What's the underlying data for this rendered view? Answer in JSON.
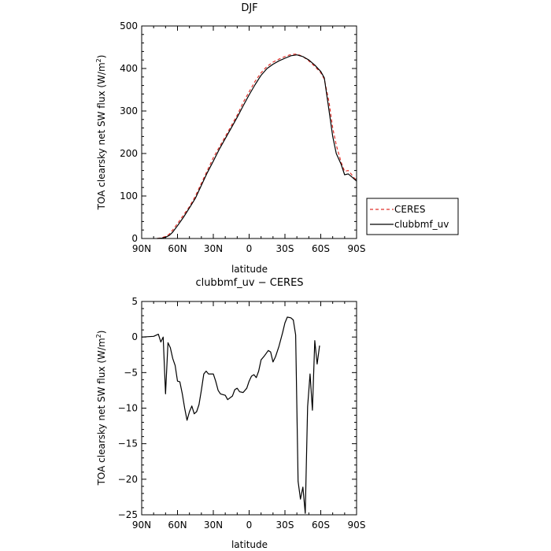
{
  "chart_data": [
    {
      "type": "line",
      "title": "DJF",
      "xlabel": "latitude",
      "ylabel": "TOA clearsky net SW flux (W/m",
      "ylabel_sup": "2",
      "ylabel_close": ")",
      "xlim": [
        90,
        -90
      ],
      "ylim": [
        0,
        500
      ],
      "x_ticks": [
        {
          "v": 90,
          "label": "90N"
        },
        {
          "v": 60,
          "label": "60N"
        },
        {
          "v": 30,
          "label": "30N"
        },
        {
          "v": 0,
          "label": "0"
        },
        {
          "v": -30,
          "label": "30S"
        },
        {
          "v": -60,
          "label": "60S"
        },
        {
          "v": -90,
          "label": "90S"
        }
      ],
      "y_ticks": [
        0,
        100,
        200,
        300,
        400,
        500
      ],
      "legend_position": "outside-right",
      "series": [
        {
          "name": "CERES",
          "color": "#e0302a",
          "dash": true,
          "points": [
            [
              77,
              0
            ],
            [
              73,
              2
            ],
            [
              70,
              5
            ],
            [
              67,
              10
            ],
            [
              64,
              20
            ],
            [
              60,
              35
            ],
            [
              55,
              55
            ],
            [
              50,
              75
            ],
            [
              45,
              100
            ],
            [
              40,
              130
            ],
            [
              35,
              160
            ],
            [
              30,
              190
            ],
            [
              25,
              215
            ],
            [
              20,
              240
            ],
            [
              15,
              265
            ],
            [
              10,
              290
            ],
            [
              5,
              320
            ],
            [
              0,
              345
            ],
            [
              -5,
              370
            ],
            [
              -10,
              390
            ],
            [
              -15,
              405
            ],
            [
              -20,
              415
            ],
            [
              -25,
              422
            ],
            [
              -30,
              428
            ],
            [
              -35,
              433
            ],
            [
              -40,
              434
            ],
            [
              -45,
              428
            ],
            [
              -50,
              418
            ],
            [
              -55,
              405
            ],
            [
              -60,
              390
            ],
            [
              -63,
              375
            ],
            [
              -67,
              320
            ],
            [
              -70,
              260
            ],
            [
              -73,
              220
            ],
            [
              -77,
              180
            ],
            [
              -80,
              158
            ],
            [
              -83,
              160
            ],
            [
              -86,
              150
            ],
            [
              -90,
              135
            ]
          ]
        },
        {
          "name": "clubbmf_uv",
          "color": "#000000",
          "dash": false,
          "points": [
            [
              77,
              0
            ],
            [
              73,
              1
            ],
            [
              70,
              3
            ],
            [
              67,
              7
            ],
            [
              64,
              15
            ],
            [
              60,
              30
            ],
            [
              55,
              50
            ],
            [
              50,
              72
            ],
            [
              45,
              95
            ],
            [
              40,
              125
            ],
            [
              35,
              155
            ],
            [
              30,
              182
            ],
            [
              25,
              210
            ],
            [
              20,
              235
            ],
            [
              15,
              260
            ],
            [
              10,
              285
            ],
            [
              5,
              312
            ],
            [
              0,
              338
            ],
            [
              -5,
              362
            ],
            [
              -10,
              384
            ],
            [
              -15,
              400
            ],
            [
              -20,
              410
            ],
            [
              -25,
              418
            ],
            [
              -30,
              424
            ],
            [
              -35,
              430
            ],
            [
              -40,
              432
            ],
            [
              -45,
              428
            ],
            [
              -50,
              420
            ],
            [
              -55,
              408
            ],
            [
              -60,
              393
            ],
            [
              -63,
              378
            ],
            [
              -67,
              300
            ],
            [
              -70,
              240
            ],
            [
              -73,
              200
            ],
            [
              -77,
              175
            ],
            [
              -80,
              150
            ],
            [
              -83,
              152
            ],
            [
              -86,
              145
            ],
            [
              -90,
              135
            ]
          ]
        }
      ]
    },
    {
      "type": "line",
      "title": "clubbmf_uv − CERES",
      "xlabel": "latitude",
      "ylabel": "TOA clearsky net SW flux (W/m",
      "ylabel_sup": "2",
      "ylabel_close": ")",
      "xlim": [
        90,
        -90
      ],
      "ylim": [
        -25,
        5
      ],
      "x_ticks": [
        {
          "v": 90,
          "label": "90N"
        },
        {
          "v": 60,
          "label": "60N"
        },
        {
          "v": 30,
          "label": "30N"
        },
        {
          "v": 0,
          "label": "0"
        },
        {
          "v": -30,
          "label": "30S"
        },
        {
          "v": -60,
          "label": "60S"
        },
        {
          "v": -90,
          "label": "90S"
        }
      ],
      "y_ticks": [
        {
          "v": 5,
          "label": "5"
        },
        {
          "v": 0,
          "label": "0"
        },
        {
          "v": -5,
          "label": "−5"
        },
        {
          "v": -10,
          "label": "−10"
        },
        {
          "v": -15,
          "label": "−15"
        },
        {
          "v": -20,
          "label": "−20"
        },
        {
          "v": -25,
          "label": "−25"
        }
      ],
      "series": [
        {
          "color": "#000000",
          "dash": false,
          "points": [
            [
              90,
              0
            ],
            [
              80,
              0.1
            ],
            [
              76,
              0.4
            ],
            [
              74,
              -0.7
            ],
            [
              72,
              0
            ],
            [
              70,
              -8
            ],
            [
              68,
              -0.8
            ],
            [
              66,
              -1.5
            ],
            [
              64,
              -3
            ],
            [
              62,
              -4
            ],
            [
              60,
              -6.2
            ],
            [
              58,
              -6.3
            ],
            [
              56,
              -8
            ],
            [
              54,
              -10
            ],
            [
              52,
              -11.7
            ],
            [
              50,
              -10.5
            ],
            [
              48,
              -9.7
            ],
            [
              46,
              -10.8
            ],
            [
              44,
              -10.5
            ],
            [
              42,
              -9.5
            ],
            [
              40,
              -7.5
            ],
            [
              38,
              -5.2
            ],
            [
              36,
              -4.8
            ],
            [
              34,
              -5.2
            ],
            [
              30,
              -5.2
            ],
            [
              28,
              -6.2
            ],
            [
              26,
              -7.5
            ],
            [
              24,
              -8
            ],
            [
              20,
              -8.2
            ],
            [
              18,
              -8.8
            ],
            [
              14,
              -8.3
            ],
            [
              12,
              -7.4
            ],
            [
              10,
              -7.2
            ],
            [
              8,
              -7.7
            ],
            [
              5,
              -7.8
            ],
            [
              2,
              -7.2
            ],
            [
              0,
              -6.2
            ],
            [
              -2,
              -5.5
            ],
            [
              -4,
              -5.3
            ],
            [
              -6,
              -5.7
            ],
            [
              -8,
              -4.8
            ],
            [
              -10,
              -3.2
            ],
            [
              -13,
              -2.6
            ],
            [
              -16,
              -1.9
            ],
            [
              -18,
              -2.1
            ],
            [
              -20,
              -3.5
            ],
            [
              -22,
              -2.8
            ],
            [
              -25,
              -1.3
            ],
            [
              -28,
              0.6
            ],
            [
              -30,
              2
            ],
            [
              -32,
              2.8
            ],
            [
              -35,
              2.7
            ],
            [
              -37,
              2.4
            ],
            [
              -39,
              0.3
            ],
            [
              -41,
              -20.3
            ],
            [
              -43,
              -22.8
            ],
            [
              -45,
              -21.1
            ],
            [
              -47,
              -24.8
            ],
            [
              -49,
              -9.8
            ],
            [
              -51,
              -5.2
            ],
            [
              -53,
              -10.3
            ],
            [
              -55,
              -0.5
            ],
            [
              -57,
              -3.8
            ],
            [
              -59,
              -1.2
            ]
          ]
        }
      ]
    }
  ]
}
